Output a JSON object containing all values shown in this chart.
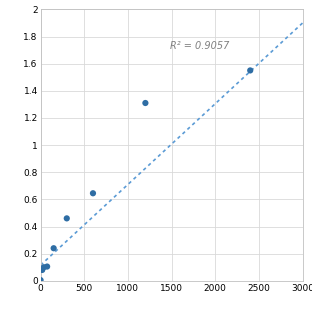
{
  "x_data": [
    0,
    18.75,
    37.5,
    75,
    150,
    300,
    600,
    1200,
    2400
  ],
  "y_data": [
    0.005,
    0.08,
    0.1,
    0.105,
    0.24,
    0.46,
    0.645,
    1.31,
    1.55
  ],
  "trendline_x": [
    0,
    3000
  ],
  "trendline_slope": 0.000595,
  "trendline_intercept": 0.115,
  "r2_text": "R² = 0.9057",
  "r2_x": 1480,
  "r2_y": 1.73,
  "xlim": [
    0,
    3000
  ],
  "ylim": [
    0,
    2.0
  ],
  "xticks": [
    0,
    500,
    1000,
    1500,
    2000,
    2500,
    3000
  ],
  "yticks": [
    0,
    0.2,
    0.4,
    0.6,
    0.8,
    1.0,
    1.2,
    1.4,
    1.6,
    1.8,
    2.0
  ],
  "scatter_color": "#2e6da4",
  "line_color": "#5b9bd5",
  "background_color": "#ffffff",
  "grid_color": "#d9d9d9",
  "tick_label_fontsize": 6.5,
  "annotation_fontsize": 7.0
}
